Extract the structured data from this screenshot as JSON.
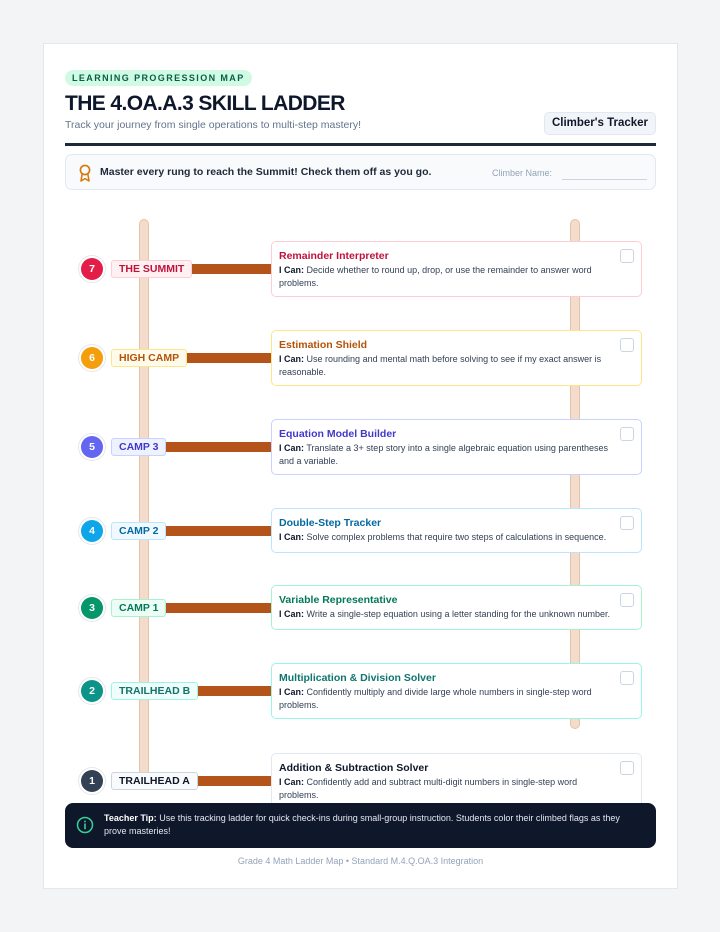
{
  "header": {
    "kicker": "LEARNING PROGRESSION MAP",
    "title": "THE 4.OA.A.3 SKILL LADDER",
    "subtitle": "Track your journey from single operations to multi-step mastery!",
    "tracker_button": "Climber's Tracker"
  },
  "banner": {
    "icon": "award-ribbon-icon",
    "message": "Master every rung to reach the Summit! Check them off as you go.",
    "name_label": "Climber Name:"
  },
  "rungs": [
    {
      "number": "7",
      "label": "THE SUMMIT",
      "color": "#e11d48",
      "title": "Remainder Interpreter",
      "i_can": "I Can:",
      "description": "Decide whether to round up, drop, or use the remainder to answer word problems.",
      "checked": false
    },
    {
      "number": "6",
      "label": "HIGH CAMP",
      "color": "#f59e0b",
      "title": "Estimation Shield",
      "i_can": "I Can:",
      "description": "Use rounding and mental math before solving to see if my exact answer is reasonable.",
      "checked": false
    },
    {
      "number": "5",
      "label": "CAMP 3",
      "color": "#6366f1",
      "title": "Equation Model Builder",
      "i_can": "I Can:",
      "description": "Translate a 3+ step story into a single algebraic equation using parentheses and a variable.",
      "checked": false
    },
    {
      "number": "4",
      "label": "CAMP 2",
      "color": "#0ea5e9",
      "title": "Double-Step Tracker",
      "i_can": "I Can:",
      "description": "Solve complex problems that require two steps of calculations in sequence.",
      "checked": false
    },
    {
      "number": "3",
      "label": "CAMP 1",
      "color": "#059669",
      "title": "Variable Representative",
      "i_can": "I Can:",
      "description": "Write a single-step equation using a letter standing for the unknown number.",
      "checked": false
    },
    {
      "number": "2",
      "label": "TRAILHEAD B",
      "color": "#0d9488",
      "title": "Multiplication & Division Solver",
      "i_can": "I Can:",
      "description": "Confidently multiply and divide large whole numbers in single-step word problems.",
      "checked": false
    },
    {
      "number": "1",
      "label": "TRAILHEAD A",
      "color": "#334155",
      "title": "Addition & Subtraction Solver",
      "i_can": "I Can:",
      "description": "Confidently add and subtract multi-digit numbers in single-step word problems.",
      "checked": false
    }
  ],
  "tip": {
    "icon": "info-circle-icon",
    "label": "Teacher Tip:",
    "text": "Use this tracking ladder for quick check-ins during small-group instruction. Students color their climbed flags as they prove masteries!"
  },
  "footer": "Grade 4 Math Ladder Map • Standard M.4.Q.OA.3 Integration"
}
